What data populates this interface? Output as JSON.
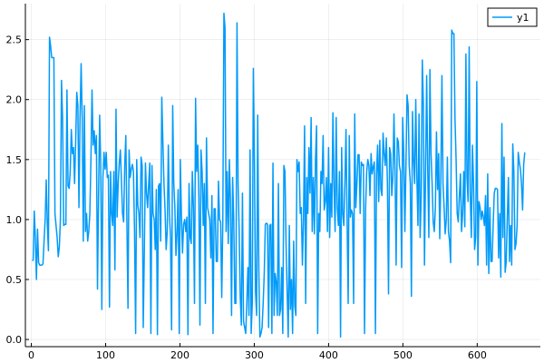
{
  "chart_data": {
    "type": "line",
    "title": "",
    "xlabel": "",
    "ylabel": "",
    "xlim": [
      -8,
      685
    ],
    "ylim": [
      -0.06,
      2.8
    ],
    "xticks": [
      0,
      100,
      200,
      300,
      400,
      500,
      600
    ],
    "yticks": [
      0.0,
      0.5,
      1.0,
      1.5,
      2.0,
      2.5
    ],
    "xtick_labels": [
      "0",
      "100",
      "200",
      "300",
      "400",
      "500",
      "600"
    ],
    "ytick_labels": [
      "0.0",
      "0.5",
      "1.0",
      "1.5",
      "2.0",
      "2.5"
    ],
    "grid": true,
    "legend_position": "top-right",
    "series": [
      {
        "name": "y1",
        "color": "#009AFA",
        "y": [
          0.66,
          0.66,
          1.07,
          0.85,
          0.5,
          0.92,
          0.64,
          0.62,
          0.62,
          0.62,
          0.63,
          0.82,
          1.0,
          1.33,
          0.95,
          0.74,
          2.52,
          2.45,
          2.35,
          2.35,
          2.35,
          1.05,
          0.95,
          0.85,
          0.69,
          0.77,
          1.0,
          2.16,
          1.84,
          0.95,
          0.96,
          0.96,
          2.08,
          1.28,
          1.26,
          1.4,
          1.75,
          1.55,
          1.6,
          1.3,
          1.65,
          2.06,
          1.95,
          1.1,
          1.85,
          2.3,
          1.85,
          0.82,
          1.95,
          0.9,
          1.05,
          0.82,
          0.9,
          1.05,
          1.5,
          2.08,
          1.62,
          1.74,
          1.55,
          1.7,
          0.42,
          1.2,
          1.87,
          1.45,
          0.25,
          1.35,
          1.56,
          1.42,
          1.56,
          1.35,
          1.37,
          0.27,
          1.4,
          1.05,
          0.95,
          1.4,
          0.58,
          1.92,
          1.02,
          1.3,
          1.47,
          1.58,
          1.32,
          1.05,
          0.98,
          1.45,
          1.7,
          0.98,
          0.26,
          1.58,
          1.35,
          1.42,
          1.46,
          1.4,
          0.9,
          0.05,
          1.5,
          1.12,
          1.05,
          0.85,
          1.52,
          1.45,
          0.1,
          0.75,
          1.47,
          1.22,
          1.1,
          1.3,
          1.47,
          0.05,
          1.45,
          1.05,
          1.0,
          0.75,
          1.25,
          0.04,
          1.28,
          1.3,
          0.82,
          2.02,
          1.65,
          1.3,
          1.08,
          0.75,
          0.9,
          1.62,
          1.05,
          0.85,
          0.08,
          1.95,
          1.3,
          1.1,
          0.7,
          0.9,
          1.25,
          0.05,
          1.5,
          1.04,
          0.72,
          0.96,
          1.0,
          0.9,
          1.02,
          0.04,
          1.3,
          0.85,
          0.8,
          1.4,
          1.1,
          0.3,
          2.01,
          1.4,
          1.62,
          1.2,
          0.12,
          1.58,
          1.4,
          0.95,
          1.3,
          0.3,
          1.68,
          1.1,
          1.05,
          1.0,
          0.68,
          1.2,
          0.05,
          1.09,
          1.09,
          0.65,
          0.65,
          1.32,
          1.0,
          0.98,
          0.35,
          1.0,
          2.72,
          2.6,
          0.9,
          1.4,
          0.8,
          1.5,
          1.15,
          0.2,
          1.35,
          1.0,
          0.3,
          0.3,
          2.64,
          1.3,
          0.9,
          0.35,
          0.12,
          1.22,
          0.15,
          0.1,
          0.05,
          0.3,
          0.6,
          0.2,
          1.58,
          0.05,
          0.3,
          2.26,
          1.5,
          0.4,
          0.2,
          1.87,
          0.6,
          0.02,
          0.05,
          0.1,
          0.3,
          0.55,
          0.96,
          0.97,
          0.96,
          0.1,
          0.95,
          0.96,
          0.05,
          1.47,
          0.2,
          0.55,
          0.48,
          0.2,
          1.3,
          0.2,
          0.25,
          0.6,
          0.05,
          1.45,
          1.4,
          0.8,
          0.4,
          0.02,
          0.95,
          0.25,
          0.5,
          0.05,
          0.82,
          0.28,
          0.2,
          1.5,
          1.4,
          1.48,
          1.05,
          1.1,
          0.62,
          1.0,
          1.78,
          0.3,
          1.35,
          1.05,
          1.6,
          1.22,
          1.85,
          0.9,
          1.35,
          0.88,
          1.5,
          1.78,
          0.05,
          1.05,
          0.9,
          1.4,
          1.3,
          1.7,
          1.08,
          1.15,
          1.35,
          0.9,
          1.6,
          0.85,
          1.3,
          1.02,
          1.89,
          1.28,
          0.9,
          1.85,
          1.1,
          0.95,
          1.4,
          0.02,
          1.6,
          1.05,
          0.95,
          1.3,
          1.75,
          1.0,
          0.3,
          1.7,
          1.02,
          1.08,
          1.05,
          0.3,
          1.88,
          1.1,
          1.3,
          1.54,
          1.54,
          1.05,
          1.48,
          1.45,
          1.46,
          0.05,
          1.1,
          1.4,
          1.5,
          1.45,
          1.2,
          1.55,
          1.38,
          1.44,
          1.48,
          0.05,
          1.38,
          1.62,
          1.15,
          1.66,
          1.25,
          1.2,
          1.72,
          1.55,
          1.45,
          1.68,
          1.3,
          0.38,
          1.6,
          1.55,
          1.2,
          1.35,
          1.88,
          1.4,
          0.62,
          1.68,
          1.65,
          1.45,
          1.4,
          0.6,
          1.85,
          1.55,
          0.9,
          1.45,
          2.04,
          1.95,
          1.45,
          1.3,
          0.36,
          1.9,
          1.5,
          1.3,
          2.0,
          1.35,
          0.95,
          1.88,
          0.85,
          1.2,
          2.33,
          1.95,
          0.62,
          1.4,
          2.2,
          1.4,
          0.85,
          2.25,
          1.55,
          1.3,
          0.98,
          0.9,
          1.1,
          1.73,
          1.25,
          1.55,
          0.84,
          1.35,
          2.2,
          1.3,
          1.1,
          0.88,
          1.0,
          1.52,
          0.9,
          0.82,
          0.64,
          2.58,
          2.55,
          2.55,
          1.84,
          1.5,
          1.05,
          0.98,
          1.2,
          1.38,
          0.9,
          1.05,
          1.4,
          0.94,
          2.38,
          1.35,
          1.15,
          2.44,
          1.2,
          0.85,
          1.62,
          1.3,
          0.75,
          0.85,
          2.15,
          0.62,
          1.15,
          1.1,
          1.0,
          1.07,
          1.02,
          0.95,
          1.2,
          0.62,
          1.38,
          0.55,
          1.1,
          0.65,
          0.65,
          0.95,
          1.22,
          1.26,
          1.26,
          1.25,
          0.68,
          1.05,
          0.52,
          1.8,
          0.85,
          1.52,
          0.56,
          0.65,
          1.02,
          1.35,
          0.65,
          0.95,
          0.62,
          1.63,
          1.4,
          0.75,
          0.8,
          0.95,
          1.56,
          1.48,
          1.42,
          1.3,
          1.08,
          1.46,
          1.56
        ],
        "x_start": 1,
        "x_end": 664
      }
    ]
  }
}
